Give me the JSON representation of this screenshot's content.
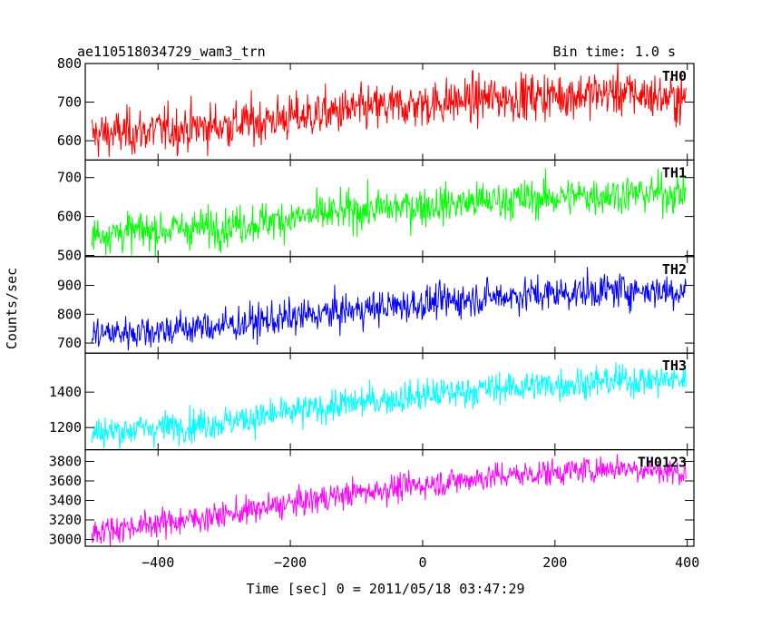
{
  "header": {
    "title": "ae110518034729_wam3_trn",
    "bin_time": "Bin time: 1.0 s"
  },
  "chart_data": {
    "type": "line",
    "xlabel": "Time [sec] 0 = 2011/05/18 03:47:29",
    "ylabel": "Counts/sec",
    "xlim": [
      -510,
      410
    ],
    "xticks": [
      -400,
      -200,
      0,
      200,
      400
    ],
    "xtick_labels": [
      "−400",
      "−200",
      "0",
      "200",
      "400"
    ],
    "x_range": [
      -500,
      398
    ],
    "bin": 1.0,
    "grid": false,
    "panels": [
      {
        "name": "TH0",
        "color": "#ff0000",
        "ylim": [
          550,
          800
        ],
        "yticks": [
          600,
          700,
          800
        ],
        "trend": [
          [
            -500,
            615
          ],
          [
            -300,
            640
          ],
          [
            -100,
            680
          ],
          [
            100,
            710
          ],
          [
            300,
            725
          ],
          [
            398,
            705
          ]
        ],
        "noise": 30
      },
      {
        "name": "TH1",
        "color": "#00ff00",
        "ylim": [
          497,
          745
        ],
        "yticks": [
          500,
          600,
          700
        ],
        "trend": [
          [
            -500,
            555
          ],
          [
            -300,
            575
          ],
          [
            -100,
            615
          ],
          [
            100,
            640
          ],
          [
            300,
            658
          ],
          [
            398,
            660
          ]
        ],
        "noise": 25
      },
      {
        "name": "TH2",
        "color": "#0000ff",
        "ylim": [
          665,
          1000
        ],
        "yticks": [
          700,
          800,
          900
        ],
        "trend": [
          [
            -500,
            730
          ],
          [
            -300,
            760
          ],
          [
            -100,
            815
          ],
          [
            100,
            860
          ],
          [
            300,
            885
          ],
          [
            398,
            880
          ]
        ],
        "noise": 30
      },
      {
        "name": "TH3",
        "color": "#00ffff",
        "ylim": [
          1075,
          1620
        ],
        "yticks": [
          1200,
          1400
        ],
        "trend": [
          [
            -500,
            1170
          ],
          [
            -300,
            1230
          ],
          [
            -100,
            1340
          ],
          [
            100,
            1420
          ],
          [
            300,
            1465
          ],
          [
            398,
            1470
          ]
        ],
        "noise": 45
      },
      {
        "name": "TH0123",
        "color": "#ff00ff",
        "ylim": [
          2930,
          3920
        ],
        "yticks": [
          3000,
          3200,
          3400,
          3600,
          3800
        ],
        "trend": [
          [
            -500,
            3080
          ],
          [
            -300,
            3250
          ],
          [
            -100,
            3480
          ],
          [
            100,
            3640
          ],
          [
            300,
            3740
          ],
          [
            398,
            3680
          ]
        ],
        "noise": 70
      }
    ]
  }
}
